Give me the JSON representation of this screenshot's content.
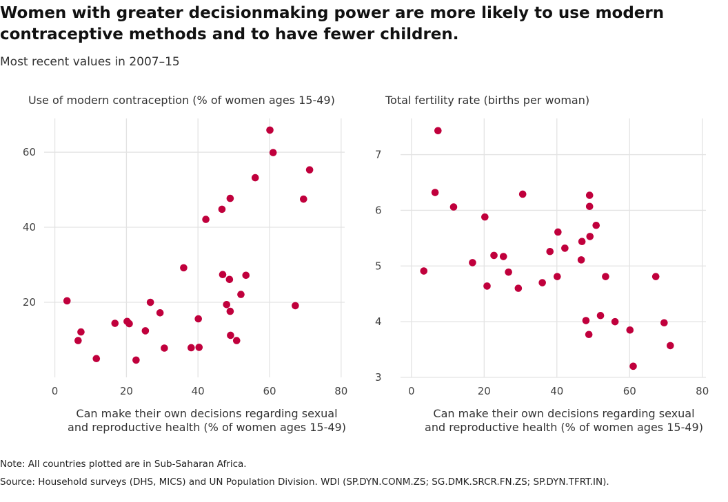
{
  "title": "Women with greater decisionmaking power are more likely to use modern contraceptive methods and to have fewer children.",
  "subtitle": "Most recent values in 2007–15",
  "note": "Note: All countries plotted are in Sub-Saharan Africa.",
  "source": "Source: Household surveys (DHS, MICS) and UN Population Division. WDI (SP.DYN.CONM.ZS; SG.DMK.SRCR.FN.ZS; SP.DYN.TFRT.IN).",
  "colors": {
    "point": "#c0003c",
    "grid": "#e3e3e3"
  },
  "chart_data": [
    {
      "type": "scatter",
      "title": "Use of modern contraception (% of women ages 15-49)",
      "xlabel": "Can make their own decisions regarding sexual\nand reproductive health (% of women ages 15-49)",
      "ylabel": "",
      "xlim": [
        -3,
        81
      ],
      "ylim": [
        0,
        69
      ],
      "xticks": [
        0,
        20,
        40,
        60,
        80
      ],
      "yticks": [
        20,
        40,
        60
      ],
      "grid": true,
      "x": [
        3.4,
        6.5,
        7.3,
        11.6,
        16.8,
        20.2,
        20.8,
        22.7,
        25.3,
        26.7,
        29.4,
        30.6,
        36.0,
        38.1,
        40.1,
        40.3,
        42.2,
        46.7,
        46.9,
        48.0,
        48.8,
        49.0,
        49.0,
        49.1,
        50.8,
        52.0,
        53.4,
        56.0,
        60.1,
        61.0,
        67.2,
        69.5,
        71.2
      ],
      "y": [
        20.4,
        9.8,
        12.1,
        5.0,
        14.4,
        14.9,
        14.3,
        4.6,
        12.4,
        20.0,
        17.2,
        7.8,
        29.2,
        7.9,
        15.6,
        8.0,
        42.1,
        44.8,
        27.4,
        19.4,
        26.1,
        47.7,
        17.6,
        11.2,
        9.8,
        22.1,
        27.2,
        53.2,
        65.9,
        59.9,
        19.1,
        47.5,
        55.3
      ]
    },
    {
      "type": "scatter",
      "title": "Total fertility rate (births per woman)",
      "xlabel": "Can make their own decisions regarding sexual\nand reproductive health (% of women ages 15-49)",
      "ylabel": "",
      "xlim": [
        -3,
        81
      ],
      "ylim": [
        3,
        7.65
      ],
      "xticks": [
        0,
        20,
        40,
        60,
        80
      ],
      "yticks": [
        3,
        4,
        5,
        6,
        7
      ],
      "grid": true,
      "x": [
        3.4,
        6.5,
        7.3,
        11.6,
        16.8,
        20.2,
        20.8,
        22.7,
        25.3,
        26.7,
        29.4,
        30.6,
        36.0,
        38.1,
        40.1,
        40.3,
        42.2,
        46.7,
        46.9,
        48.0,
        48.8,
        49.0,
        49.0,
        49.1,
        50.8,
        52.0,
        53.4,
        56.0,
        60.1,
        61.0,
        67.2,
        69.5,
        71.2
      ],
      "y": [
        4.91,
        6.32,
        7.43,
        6.06,
        5.06,
        5.88,
        4.64,
        5.19,
        5.17,
        4.89,
        4.6,
        6.29,
        4.7,
        5.26,
        4.81,
        5.61,
        5.32,
        5.11,
        5.44,
        4.02,
        3.77,
        6.27,
        6.07,
        5.53,
        5.73,
        4.11,
        4.81,
        4.0,
        3.85,
        3.2,
        4.81,
        3.98,
        3.57
      ]
    }
  ]
}
